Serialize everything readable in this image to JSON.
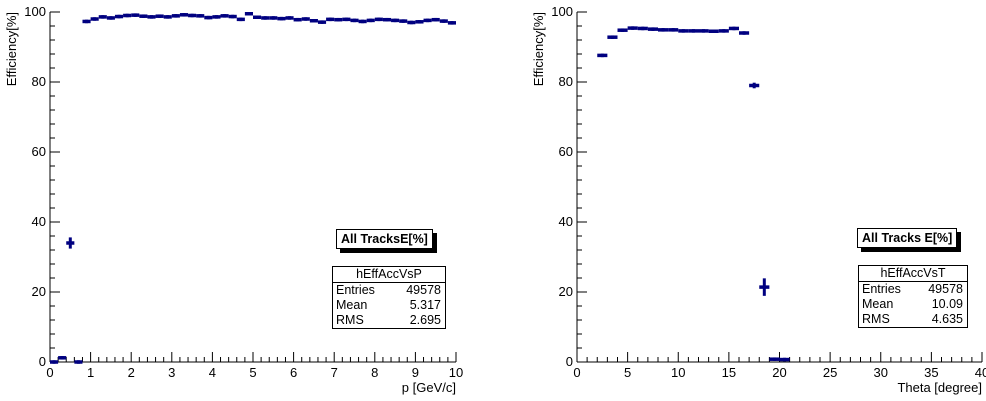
{
  "colors": {
    "marker": "#000080",
    "axis": "#000000",
    "background": "#ffffff"
  },
  "chart_data": [
    {
      "type": "scatter",
      "xlabel": "p [GeV/c]",
      "ylabel": "Efficiency[%]",
      "xlim": [
        0,
        10
      ],
      "ylim": [
        0,
        100
      ],
      "x_ticks": [
        0,
        1,
        2,
        3,
        4,
        5,
        6,
        7,
        8,
        9,
        10
      ],
      "y_ticks": [
        0,
        20,
        40,
        60,
        80,
        100
      ],
      "bin_width": 0.2,
      "x": [
        0.1,
        0.3,
        0.5,
        0.7,
        0.9,
        1.1,
        1.3,
        1.5,
        1.7,
        1.9,
        2.1,
        2.3,
        2.5,
        2.7,
        2.9,
        3.1,
        3.3,
        3.5,
        3.7,
        3.9,
        4.1,
        4.3,
        4.5,
        4.7,
        4.9,
        5.1,
        5.3,
        5.5,
        5.7,
        5.9,
        6.1,
        6.3,
        6.5,
        6.7,
        6.9,
        7.1,
        7.3,
        7.5,
        7.7,
        7.9,
        8.1,
        8.3,
        8.5,
        8.7,
        8.9,
        9.1,
        9.3,
        9.5,
        9.7,
        9.9
      ],
      "values": [
        0,
        1.2,
        34.0,
        0,
        97.3,
        98.0,
        98.6,
        98.3,
        98.7,
        99.0,
        99.1,
        98.8,
        98.6,
        98.8,
        98.6,
        98.9,
        99.2,
        99.0,
        98.9,
        98.4,
        98.6,
        98.9,
        98.7,
        97.9,
        99.5,
        98.5,
        98.3,
        98.3,
        98.1,
        98.3,
        97.8,
        98.0,
        97.5,
        97.1,
        97.9,
        97.8,
        97.9,
        97.6,
        97.3,
        97.6,
        97.9,
        97.8,
        97.6,
        97.4,
        97.0,
        97.2,
        97.6,
        97.8,
        97.4,
        96.9
      ],
      "errors": [
        0,
        0.3,
        1.6,
        0,
        0.3,
        0.3,
        0.3,
        0.3,
        0.3,
        0.3,
        0.3,
        0.3,
        0.3,
        0.3,
        0.3,
        0.3,
        0.3,
        0.3,
        0.3,
        0.3,
        0.3,
        0.3,
        0.3,
        0.3,
        0.3,
        0.3,
        0.3,
        0.3,
        0.3,
        0.3,
        0.3,
        0.3,
        0.3,
        0.3,
        0.3,
        0.3,
        0.3,
        0.3,
        0.3,
        0.3,
        0.3,
        0.3,
        0.3,
        0.3,
        0.3,
        0.3,
        0.3,
        0.3,
        0.3,
        0.3
      ],
      "label_box": "All TracksE[%]",
      "stats": {
        "name": "hEffAccVsP",
        "rows": [
          {
            "label": "Entries",
            "value": "49578"
          },
          {
            "label": "Mean",
            "value": "5.317"
          },
          {
            "label": "RMS",
            "value": "2.695"
          }
        ]
      }
    },
    {
      "type": "scatter",
      "xlabel": "Theta [degree]",
      "ylabel": "Efficiency[%]",
      "xlim": [
        0,
        40
      ],
      "ylim": [
        0,
        100
      ],
      "x_ticks": [
        0,
        5,
        10,
        15,
        20,
        25,
        30,
        35,
        40
      ],
      "y_ticks": [
        0,
        20,
        40,
        60,
        80,
        100
      ],
      "bin_width": 1,
      "x": [
        2.5,
        3.5,
        4.5,
        5.5,
        6.5,
        7.5,
        8.5,
        9.5,
        10.5,
        11.5,
        12.5,
        13.5,
        14.5,
        15.5,
        16.5,
        17.5,
        18.5,
        19.5,
        20.5
      ],
      "values": [
        87.6,
        92.8,
        94.8,
        95.4,
        95.3,
        95.1,
        94.9,
        94.9,
        94.6,
        94.6,
        94.6,
        94.5,
        94.6,
        95.3,
        94.0,
        79.0,
        21.4,
        0.8,
        0.7
      ],
      "errors": [
        0.4,
        0.3,
        0.3,
        0.3,
        0.3,
        0.3,
        0.3,
        0.3,
        0.3,
        0.3,
        0.3,
        0.3,
        0.3,
        0.3,
        0.3,
        0.8,
        2.5,
        0.5,
        0.5
      ],
      "label_box": "All Tracks E[%]",
      "stats": {
        "name": "hEffAccVsT",
        "rows": [
          {
            "label": "Entries",
            "value": "49578"
          },
          {
            "label": "Mean",
            "value": "10.09"
          },
          {
            "label": "RMS",
            "value": "4.635"
          }
        ]
      }
    }
  ]
}
